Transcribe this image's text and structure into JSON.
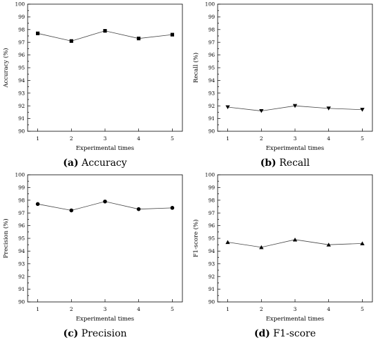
{
  "chart_data": [
    {
      "type": "line",
      "marker": "square",
      "caption_letter": "(a)",
      "caption_text": "Accuracy",
      "xlabel": "Experimental times",
      "ylabel": "Accuracy (%)",
      "x": [
        1,
        2,
        3,
        4,
        5
      ],
      "x_ticks": [
        "1",
        "2",
        "3",
        "4",
        "5"
      ],
      "values": [
        97.7,
        97.1,
        97.9,
        97.3,
        97.6
      ],
      "ylim": [
        90,
        100
      ],
      "y_ticks": [
        "90",
        "91",
        "92",
        "93",
        "94",
        "95",
        "96",
        "97",
        "98",
        "99",
        "100"
      ],
      "grid": false
    },
    {
      "type": "line",
      "marker": "triangle-down",
      "caption_letter": "(b)",
      "caption_text": "Recall",
      "xlabel": "Experimental times",
      "ylabel": "Recall (%)",
      "x": [
        1,
        2,
        3,
        4,
        5
      ],
      "x_ticks": [
        "1",
        "2",
        "3",
        "4",
        "5"
      ],
      "values": [
        91.9,
        91.6,
        92.0,
        91.8,
        91.7
      ],
      "ylim": [
        90,
        100
      ],
      "y_ticks": [
        "90",
        "91",
        "92",
        "93",
        "94",
        "95",
        "96",
        "97",
        "98",
        "99",
        "100"
      ],
      "grid": false
    },
    {
      "type": "line",
      "marker": "circle",
      "caption_letter": "(c)",
      "caption_text": "Precision",
      "xlabel": "Experimental times",
      "ylabel": "Precision (%)",
      "x": [
        1,
        2,
        3,
        4,
        5
      ],
      "x_ticks": [
        "1",
        "2",
        "3",
        "4",
        "5"
      ],
      "values": [
        97.7,
        97.2,
        97.9,
        97.3,
        97.4
      ],
      "ylim": [
        90,
        100
      ],
      "y_ticks": [
        "90",
        "91",
        "92",
        "93",
        "94",
        "95",
        "96",
        "97",
        "98",
        "99",
        "100"
      ],
      "grid": false
    },
    {
      "type": "line",
      "marker": "triangle-up",
      "caption_letter": "(d)",
      "caption_text": "F1-score",
      "xlabel": "Experimental times",
      "ylabel": "F1-score (%)",
      "x": [
        1,
        2,
        3,
        4,
        5
      ],
      "x_ticks": [
        "1",
        "2",
        "3",
        "4",
        "5"
      ],
      "values": [
        94.7,
        94.3,
        94.9,
        94.5,
        94.6
      ],
      "ylim": [
        90,
        100
      ],
      "y_ticks": [
        "90",
        "91",
        "92",
        "93",
        "94",
        "95",
        "96",
        "97",
        "98",
        "99",
        "100"
      ],
      "grid": false
    }
  ]
}
